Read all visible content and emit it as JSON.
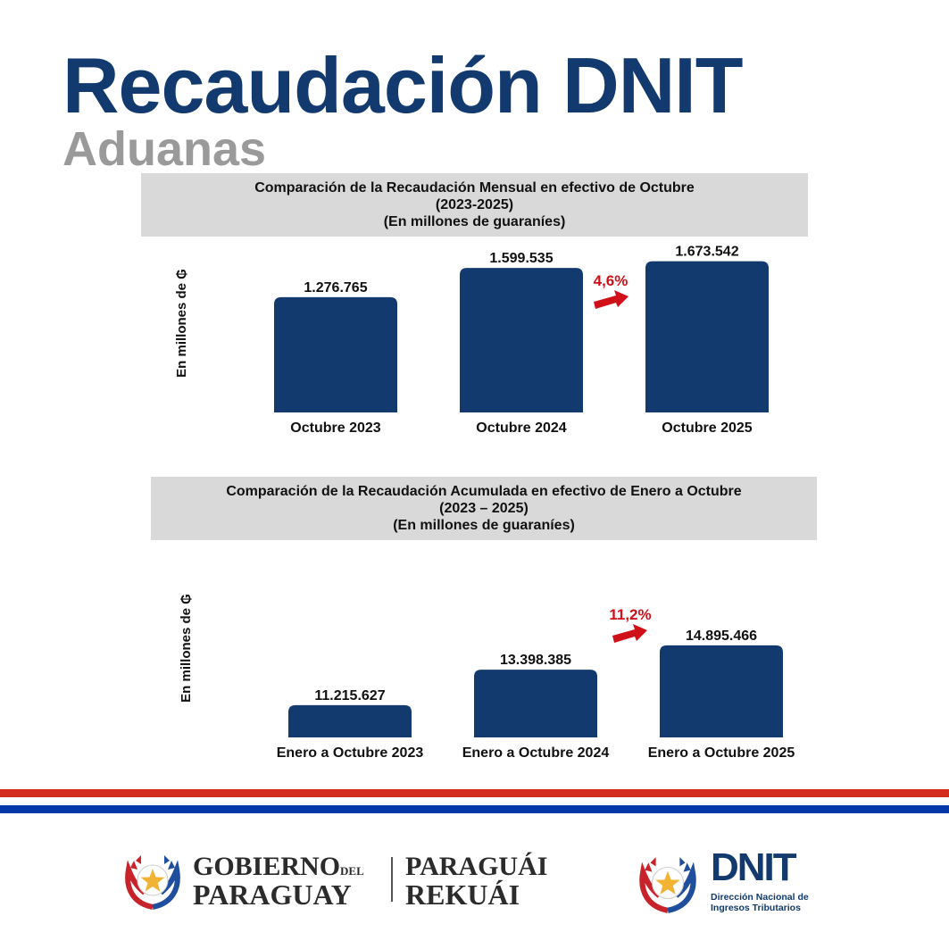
{
  "header": {
    "title": "Recaudación DNIT",
    "subtitle": "Aduanas"
  },
  "chart_data": [
    {
      "type": "bar",
      "title_lines": [
        "Comparación de la Recaudación Mensual en efectivo de Octubre",
        "(2023-2025)",
        "(En millones de guaraníes)"
      ],
      "ylabel": "En millones de ₲",
      "categories": [
        "Octubre 2023",
        "Octubre 2024",
        "Octubre 2025"
      ],
      "values": [
        1276765,
        1599535,
        1673542
      ],
      "value_labels": [
        "1.276.765",
        "1.599.535",
        "1.673.542"
      ],
      "growth_label": "4,6%",
      "ylim": [
        0,
        1700000
      ]
    },
    {
      "type": "bar",
      "title_lines": [
        "Comparación de la Recaudación Acumulada en efectivo de Enero a Octubre",
        "(2023 – 2025)",
        "(En millones de guaraníes)"
      ],
      "ylabel": "En millones de ₲",
      "categories": [
        "Enero a Octubre 2023",
        "Enero a Octubre 2024",
        "Enero a Octubre 2025"
      ],
      "values": [
        11215627,
        13398385,
        14895466
      ],
      "value_labels": [
        "11.215.627",
        "13.398.385",
        "14.895.466"
      ],
      "growth_label": "11,2%",
      "ylim": [
        10000000,
        15000000
      ]
    }
  ],
  "footer": {
    "gobierno_line1": "GOBIERNO",
    "gobierno_del": "DEL",
    "gobierno_line2": "PARAGUAY",
    "rekuai_line1": "PARAGUÁI",
    "rekuai_line2": "REKUÁI",
    "dnit_name": "DNIT",
    "dnit_sub1": "Dirección Nacional de",
    "dnit_sub2": "Ingresos Tributarios",
    "colors": {
      "red": "#d52b1e",
      "blue": "#0038a8",
      "navy": "#123a6e"
    }
  }
}
